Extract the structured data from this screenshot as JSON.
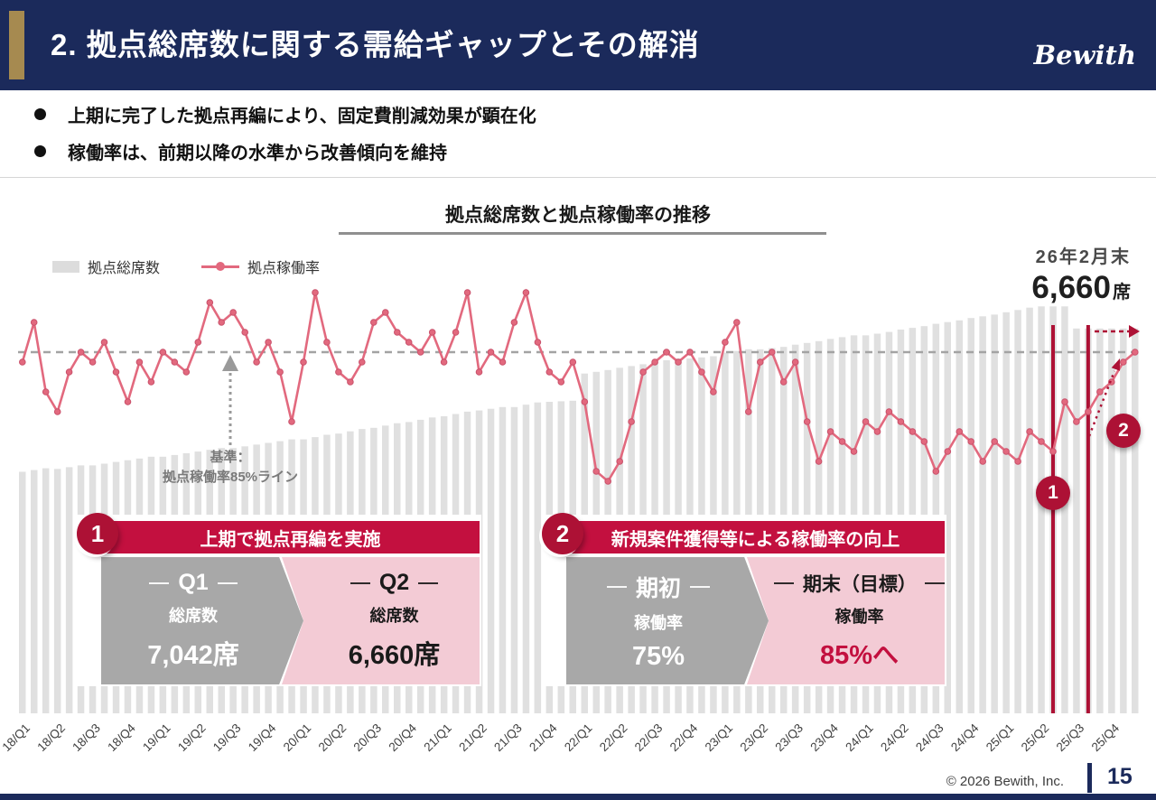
{
  "header": {
    "title": "2. 拠点総席数に関する需給ギャップとその解消",
    "logo": "Bewith"
  },
  "bullets": [
    "上期に完了した拠点再編により、固定費削減効果が顕在化",
    "稼働率は、前期以降の水準から改善傾向を維持"
  ],
  "chart": {
    "title": "拠点総席数と拠点稼働率の推移",
    "legend_seats": "拠点総席数",
    "legend_rate": "拠点稼働率",
    "end_period": "26年2月末",
    "end_value": "6,660",
    "end_unit": "席",
    "baseline_note_1": "基準：",
    "baseline_note_2": "拠点稼働率85%ライン",
    "marker1": "1",
    "marker2": "2"
  },
  "chart_data": {
    "type": "bar+line",
    "title": "拠点総席数と拠点稼働率の推移",
    "legend_position": "top-left",
    "grid": false,
    "x_quarters": [
      "18/Q1",
      "18/Q2",
      "18/Q3",
      "18/Q4",
      "19/Q1",
      "19/Q2",
      "19/Q3",
      "19/Q4",
      "20/Q1",
      "20/Q2",
      "20/Q3",
      "20/Q4",
      "21/Q1",
      "21/Q2",
      "21/Q3",
      "21/Q4",
      "22/Q1",
      "22/Q2",
      "22/Q3",
      "22/Q4",
      "23/Q1",
      "23/Q2",
      "23/Q3",
      "23/Q4",
      "24/Q1",
      "24/Q2",
      "24/Q3",
      "24/Q4",
      "25/Q1",
      "25/Q2",
      "25/Q3",
      "25/Q4"
    ],
    "bar_series": {
      "name": "拠点総席数",
      "unit": "席",
      "monthly_values": [
        4180,
        4210,
        4240,
        4230,
        4260,
        4290,
        4290,
        4320,
        4350,
        4380,
        4410,
        4440,
        4440,
        4470,
        4500,
        4530,
        4560,
        4590,
        4590,
        4620,
        4650,
        4680,
        4710,
        4740,
        4740,
        4780,
        4820,
        4840,
        4880,
        4920,
        4940,
        4980,
        5020,
        5040,
        5080,
        5120,
        5140,
        5180,
        5220,
        5240,
        5270,
        5300,
        5300,
        5340,
        5380,
        5390,
        5400,
        5410,
        5880,
        5910,
        5940,
        5980,
        6010,
        6040,
        6080,
        6110,
        6140,
        6140,
        6160,
        6180,
        6240,
        6270,
        6300,
        6300,
        6320,
        6340,
        6380,
        6410,
        6440,
        6480,
        6510,
        6540,
        6540,
        6570,
        6600,
        6640,
        6670,
        6700,
        6740,
        6770,
        6800,
        6840,
        6870,
        6900,
        6940,
        6980,
        7020,
        7042,
        7042,
        7042,
        6660,
        6660,
        6660,
        6660,
        6660,
        6660
      ]
    },
    "line_series": {
      "name": "拠点稼働率",
      "unit": "%",
      "monthly_values": [
        84,
        88,
        81,
        79,
        83,
        85,
        84,
        86,
        83,
        80,
        84,
        82,
        85,
        84,
        83,
        86,
        90,
        88,
        89,
        87,
        84,
        86,
        83,
        78,
        84,
        91,
        86,
        83,
        82,
        84,
        88,
        89,
        87,
        86,
        85,
        87,
        84,
        87,
        91,
        83,
        85,
        84,
        88,
        91,
        86,
        83,
        82,
        84,
        80,
        73,
        72,
        74,
        78,
        83,
        84,
        85,
        84,
        85,
        83,
        81,
        86,
        88,
        79,
        84,
        85,
        82,
        84,
        78,
        74,
        77,
        76,
        75,
        78,
        77,
        79,
        78,
        77,
        76,
        73,
        75,
        77,
        76,
        74,
        76,
        75,
        74,
        77,
        76,
        75,
        80,
        78,
        79,
        81,
        82,
        84,
        85
      ]
    },
    "baseline": {
      "value": 85,
      "unit": "%",
      "label": "基準：拠点稼働率85%ライン"
    },
    "end_point": {
      "period": "26年2月末",
      "total_seats": 6660
    },
    "highlights": [
      {
        "marker": "1",
        "period": "25/Q2",
        "description": "上期で拠点再編を実施"
      },
      {
        "marker": "2",
        "period": "25/Q4",
        "description": "新規案件獲得等による稼働率の向上"
      }
    ]
  },
  "callout1": {
    "number": "1",
    "title": "上期で拠点再編を実施",
    "left": {
      "label": "Q1",
      "caption": "総席数",
      "value": "7,042席"
    },
    "right": {
      "label": "Q2",
      "caption": "総席数",
      "value": "6,660席"
    }
  },
  "callout2": {
    "number": "2",
    "title": "新規案件獲得等による稼働率の向上",
    "left": {
      "label": "期初",
      "caption": "稼働率",
      "value": "75%"
    },
    "right": {
      "label": "期末（目標）",
      "caption": "稼働率",
      "value": "85%へ"
    }
  },
  "footer": {
    "copyright": "© 2026 Bewith, Inc.",
    "page": "15"
  },
  "colors": {
    "navy": "#1b2a5b",
    "gold": "#a68a50",
    "crimson": "#ad1135",
    "header_red": "#c3103f",
    "pink_fill": "#f3cbd5",
    "gray_fill": "#a8a8a8",
    "bar_gray": "#e0e0e0",
    "line_pink": "#e2697e"
  }
}
